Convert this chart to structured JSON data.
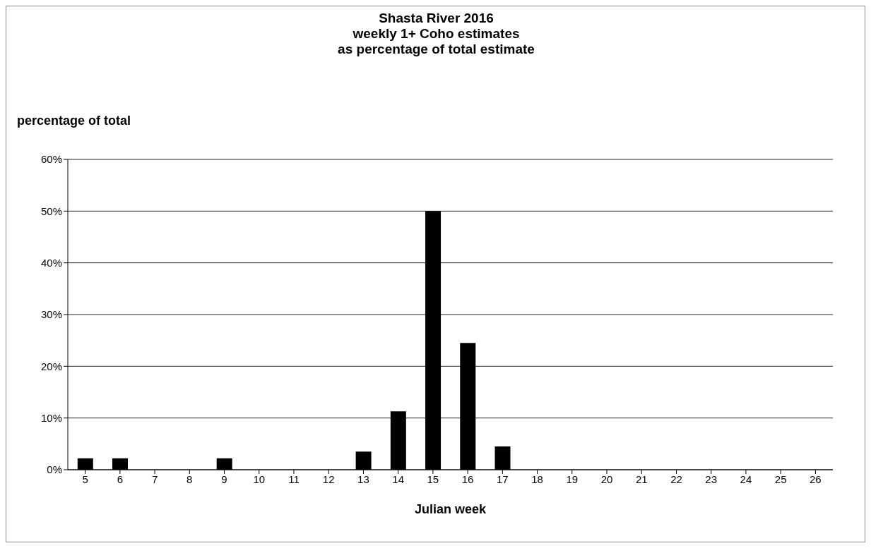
{
  "chart_data": {
    "type": "bar",
    "title": "Shasta River 2016\nweekly 1+ Coho estimates\nas percentage of total estimate",
    "xlabel": "Julian week",
    "ylabel": "percentage of total",
    "categories": [
      "5",
      "6",
      "7",
      "8",
      "9",
      "10",
      "11",
      "12",
      "13",
      "14",
      "15",
      "16",
      "17",
      "18",
      "19",
      "20",
      "21",
      "22",
      "23",
      "24",
      "25",
      "26"
    ],
    "values": [
      2.2,
      2.2,
      0,
      0,
      2.2,
      0,
      0,
      0,
      3.5,
      11.3,
      50,
      24.5,
      4.5,
      0,
      0,
      0,
      0,
      0,
      0,
      0,
      0,
      0
    ],
    "color": "#000000",
    "ylim": [
      0,
      60
    ],
    "yticks": [
      {
        "value": 0,
        "label": "0%"
      },
      {
        "value": 10,
        "label": "10%"
      },
      {
        "value": 20,
        "label": "20%"
      },
      {
        "value": 30,
        "label": "30%"
      },
      {
        "value": 40,
        "label": "40%"
      },
      {
        "value": 50,
        "label": "50%"
      },
      {
        "value": 60,
        "label": "60%"
      }
    ],
    "grid": "y",
    "legend": false
  }
}
